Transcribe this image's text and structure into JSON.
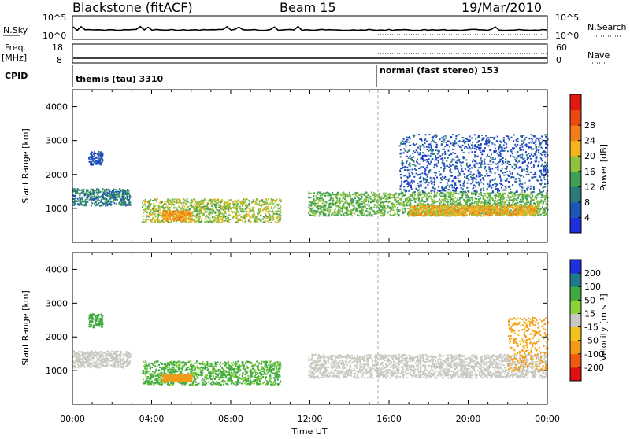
{
  "header": {
    "radar": "Blackstone (fitACF)",
    "beam": "Beam 15",
    "date": "19/Mar/2010"
  },
  "aux": {
    "nsky_label": "N.Sky",
    "nsky_ticks": [
      "10^5",
      "10^0"
    ],
    "nsearch_label": "N.Search",
    "nsearch_ticks": [
      "10^5",
      "10^0"
    ],
    "freq_label": "Freq.",
    "freq_unit": "[MHz]",
    "freq_ticks": [
      "18",
      "8"
    ],
    "nave_label": "Nave",
    "nave_ticks": [
      "60",
      "0"
    ],
    "cpid_label": "CPID",
    "cpid_segments": [
      "themis (tau) 3310",
      "normal (fast stereo) 153"
    ]
  },
  "colors": {
    "power_scale": [
      "#1f2fdc",
      "#1e56b8",
      "#2a7a7a",
      "#3f9f56",
      "#8ec23f",
      "#f2b51e",
      "#f07d1a",
      "#e84a12",
      "#e01a10"
    ],
    "velocity_scale": [
      "#e01010",
      "#ee5a12",
      "#f39a18",
      "#f2c21e",
      "#c8c8c0",
      "#8ed23a",
      "#3faa3f",
      "#1e7a8a",
      "#1f2fdc"
    ],
    "ground_scatter": "#c8c8c0"
  },
  "chart_data": [
    {
      "type": "heatmap",
      "panel": "power",
      "ylabel": "Slant Range [km]",
      "xlabel": "",
      "ylim": [
        0,
        4500
      ],
      "yticks": [
        "1000",
        "2000",
        "3000",
        "4000"
      ],
      "xlim": [
        "00:00",
        "24:00"
      ],
      "colorbar_label": "Power [dB]",
      "colorbar_ticks": [
        "4",
        "8",
        "12",
        "16",
        "20",
        "24",
        "28"
      ],
      "colorbar_range": [
        0,
        32
      ],
      "features": [
        {
          "t": [
            0.0,
            2.9
          ],
          "range": [
            1100,
            1600
          ],
          "power": 8
        },
        {
          "t": [
            0.8,
            1.5
          ],
          "range": [
            2300,
            2700
          ],
          "power": 3
        },
        {
          "t": [
            3.5,
            10.5
          ],
          "range": [
            600,
            1300
          ],
          "power": 16
        },
        {
          "t": [
            4.5,
            6.0
          ],
          "range": [
            650,
            950
          ],
          "power": 22
        },
        {
          "t": [
            11.9,
            24.0
          ],
          "range": [
            800,
            1500
          ],
          "power": 14
        },
        {
          "t": [
            17.0,
            23.5
          ],
          "range": [
            800,
            1100
          ],
          "power": 20
        },
        {
          "t": [
            16.5,
            24.0
          ],
          "range": [
            1500,
            3200
          ],
          "power": 4
        }
      ]
    },
    {
      "type": "heatmap",
      "panel": "velocity",
      "ylabel": "Slant Range [km]",
      "xlabel": "Time UT",
      "ylim": [
        0,
        4500
      ],
      "yticks": [
        "1000",
        "2000",
        "3000",
        "4000"
      ],
      "xticks": [
        "00:00",
        "04:00",
        "08:00",
        "12:00",
        "16:00",
        "20:00",
        "00:00"
      ],
      "colorbar_label": "Velocity [m s⁻¹]",
      "colorbar_ticks": [
        "200",
        "100",
        "50",
        "15",
        "-15",
        "-50",
        "-100",
        "-200"
      ],
      "features": [
        {
          "t": [
            0.0,
            2.9
          ],
          "range": [
            1100,
            1600
          ],
          "velocity": "ground"
        },
        {
          "t": [
            0.8,
            1.5
          ],
          "range": [
            2300,
            2700
          ],
          "velocity": 60
        },
        {
          "t": [
            3.5,
            10.5
          ],
          "range": [
            600,
            1300
          ],
          "velocity": 40
        },
        {
          "t": [
            4.5,
            6.0
          ],
          "range": [
            700,
            900
          ],
          "velocity": -60
        },
        {
          "t": [
            11.9,
            24.0
          ],
          "range": [
            800,
            1500
          ],
          "velocity": "ground"
        },
        {
          "t": [
            22.0,
            24.0
          ],
          "range": [
            1000,
            2600
          ],
          "velocity": -40
        }
      ]
    }
  ]
}
